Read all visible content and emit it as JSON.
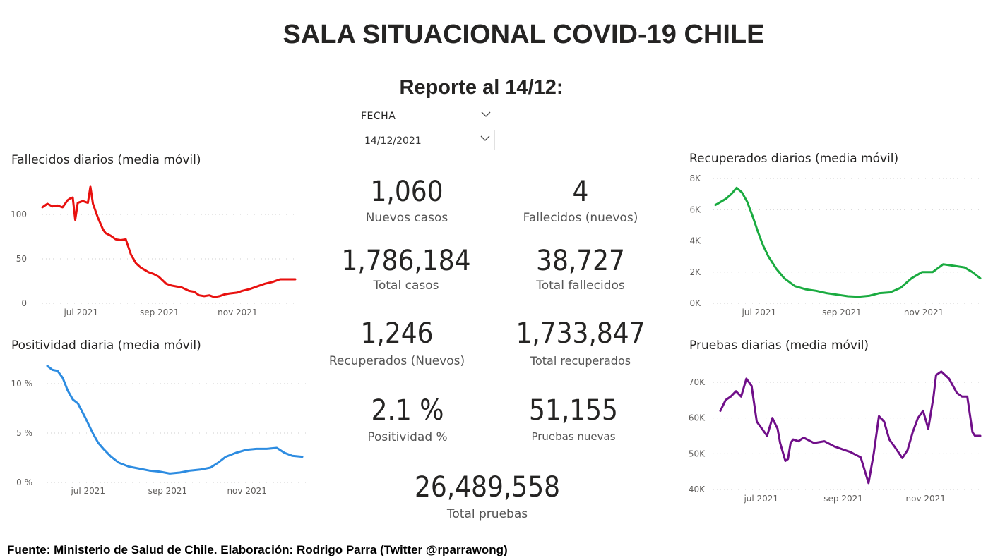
{
  "header": {
    "title": "SALA SITUACIONAL COVID-19 CHILE",
    "subtitle": "Reporte al 14/12:"
  },
  "slicer": {
    "label": "FECHA",
    "value": "14/12/2021"
  },
  "kpis": {
    "nuevos_casos": {
      "value": "1,060",
      "label": "Nuevos casos"
    },
    "fallecidos_nuevos": {
      "value": "4",
      "label": "Fallecidos (nuevos)"
    },
    "total_casos": {
      "value": "1,786,184",
      "label": "Total casos"
    },
    "total_fallecidos": {
      "value": "38,727",
      "label": "Total fallecidos"
    },
    "recuperados_nuevos": {
      "value": "1,246",
      "label": "Recuperados (Nuevos)"
    },
    "total_recuperados": {
      "value": "1,733,847",
      "label": "Total recuperados"
    },
    "positividad": {
      "value": "2.1 %",
      "label": "Positividad %"
    },
    "pruebas_nuevas": {
      "value": "51,155",
      "label": "Pruebas nuevas"
    },
    "total_pruebas": {
      "value": "26,489,558",
      "label": "Total pruebas"
    }
  },
  "footer": "Fuente: Ministerio de Salud de Chile. Elaboración: Rodrigo Parra (Twitter @rparrawong)",
  "chart_data": [
    {
      "id": "fallecidos",
      "type": "line",
      "title": "Fallecidos diarios (media móvil)",
      "color": "#e8110f",
      "x_tick_labels": [
        "jul 2021",
        "sep 2021",
        "nov 2021"
      ],
      "x_tick_positions": [
        0.153,
        0.463,
        0.772
      ],
      "y_ticks": [
        0,
        50,
        100
      ],
      "y_tick_labels": [
        "0",
        "50",
        "100"
      ],
      "ylim": [
        0,
        100
      ],
      "grid": true,
      "x": [
        0,
        0.02,
        0.04,
        0.06,
        0.08,
        0.1,
        0.11,
        0.12,
        0.13,
        0.14,
        0.16,
        0.18,
        0.19,
        0.2,
        0.21,
        0.22,
        0.24,
        0.25,
        0.27,
        0.29,
        0.31,
        0.33,
        0.35,
        0.37,
        0.39,
        0.42,
        0.44,
        0.46,
        0.49,
        0.51,
        0.53,
        0.55,
        0.58,
        0.6,
        0.62,
        0.64,
        0.66,
        0.68,
        0.7,
        0.72,
        0.74,
        0.77,
        0.79,
        0.82,
        0.85,
        0.88,
        0.91,
        0.94,
        0.97,
        1.0
      ],
      "values": [
        108,
        112,
        109,
        110,
        108,
        116,
        118,
        119,
        94,
        113,
        115,
        113,
        131,
        112,
        104,
        96,
        83,
        79,
        76,
        72,
        71,
        72,
        55,
        45,
        40,
        35,
        33,
        30,
        22,
        20,
        19,
        18,
        14,
        13,
        9,
        8,
        9,
        7,
        8,
        10,
        11,
        12,
        14,
        16,
        19,
        22,
        24,
        27,
        27,
        27
      ]
    },
    {
      "id": "positividad",
      "type": "line",
      "title": "Positividad diaria (media móvil)",
      "color": "#2d8ce1",
      "x_tick_labels": [
        "jul 2021",
        "sep 2021",
        "nov 2021"
      ],
      "x_tick_positions": [
        0.16,
        0.472,
        0.783
      ],
      "y_ticks": [
        0,
        5,
        10
      ],
      "y_tick_labels": [
        "0 %",
        "5 %",
        "10 %"
      ],
      "ylim": [
        0,
        10
      ],
      "grid": true,
      "x": [
        0,
        0.02,
        0.04,
        0.06,
        0.08,
        0.1,
        0.12,
        0.15,
        0.18,
        0.2,
        0.22,
        0.25,
        0.28,
        0.32,
        0.36,
        0.4,
        0.44,
        0.48,
        0.52,
        0.56,
        0.6,
        0.64,
        0.67,
        0.7,
        0.74,
        0.78,
        0.82,
        0.86,
        0.9,
        0.93,
        0.96,
        1.0
      ],
      "values": [
        11.8,
        11.4,
        11.3,
        10.6,
        9.3,
        8.4,
        8.0,
        6.5,
        4.9,
        4.0,
        3.4,
        2.6,
        2.0,
        1.6,
        1.4,
        1.2,
        1.1,
        0.9,
        1.0,
        1.2,
        1.3,
        1.5,
        2.0,
        2.6,
        3.0,
        3.3,
        3.4,
        3.4,
        3.5,
        3.0,
        2.7,
        2.6
      ]
    },
    {
      "id": "recuperados",
      "type": "line",
      "title": "Recuperados diarios (media móvil)",
      "color": "#1aab40",
      "x_tick_labels": [
        "jul 2021",
        "sep 2021",
        "nov 2021"
      ],
      "x_tick_positions": [
        0.165,
        0.477,
        0.787
      ],
      "y_ticks": [
        0,
        2000,
        4000,
        6000,
        8000
      ],
      "y_tick_labels": [
        "0K",
        "2K",
        "4K",
        "6K",
        "8K"
      ],
      "ylim": [
        0,
        8000
      ],
      "grid": true,
      "x": [
        0,
        0.02,
        0.04,
        0.06,
        0.08,
        0.1,
        0.12,
        0.14,
        0.16,
        0.18,
        0.2,
        0.23,
        0.26,
        0.3,
        0.34,
        0.38,
        0.42,
        0.46,
        0.5,
        0.54,
        0.58,
        0.62,
        0.66,
        0.7,
        0.74,
        0.78,
        0.82,
        0.86,
        0.9,
        0.94,
        0.97,
        1.0
      ],
      "values": [
        6300,
        6500,
        6700,
        7000,
        7400,
        7100,
        6500,
        5600,
        4600,
        3700,
        3000,
        2200,
        1600,
        1100,
        900,
        800,
        650,
        550,
        450,
        420,
        480,
        650,
        700,
        1000,
        1600,
        2000,
        2000,
        2500,
        2400,
        2300,
        2000,
        1600
      ]
    },
    {
      "id": "pruebas",
      "type": "line",
      "title": "Pruebas diarias (media móvil)",
      "color": "#700f89",
      "x_tick_labels": [
        "jul 2021",
        "sep 2021",
        "nov 2021"
      ],
      "x_tick_positions": [
        0.157,
        0.473,
        0.79
      ],
      "y_ticks": [
        40000,
        50000,
        60000,
        70000
      ],
      "y_tick_labels": [
        "40K",
        "50K",
        "60K",
        "70K"
      ],
      "ylim": [
        40000,
        70000
      ],
      "grid": true,
      "x": [
        0,
        0.02,
        0.04,
        0.06,
        0.08,
        0.1,
        0.12,
        0.14,
        0.16,
        0.18,
        0.2,
        0.22,
        0.23,
        0.25,
        0.26,
        0.27,
        0.28,
        0.3,
        0.32,
        0.36,
        0.4,
        0.44,
        0.48,
        0.5,
        0.54,
        0.57,
        0.59,
        0.61,
        0.63,
        0.65,
        0.67,
        0.7,
        0.72,
        0.74,
        0.76,
        0.78,
        0.8,
        0.82,
        0.83,
        0.85,
        0.88,
        0.91,
        0.93,
        0.95,
        0.97,
        0.98,
        1.0
      ],
      "values": [
        62000,
        65000,
        66000,
        67500,
        66000,
        71000,
        69000,
        59000,
        57000,
        55000,
        60000,
        57000,
        53000,
        48000,
        48500,
        53000,
        54000,
        53500,
        54500,
        53000,
        53500,
        52000,
        51000,
        50500,
        49000,
        41800,
        50000,
        60500,
        59000,
        54000,
        52000,
        48800,
        51000,
        56000,
        60000,
        62000,
        57000,
        66000,
        72000,
        73000,
        71000,
        67000,
        66000,
        66000,
        56000,
        55000,
        55000
      ]
    }
  ]
}
